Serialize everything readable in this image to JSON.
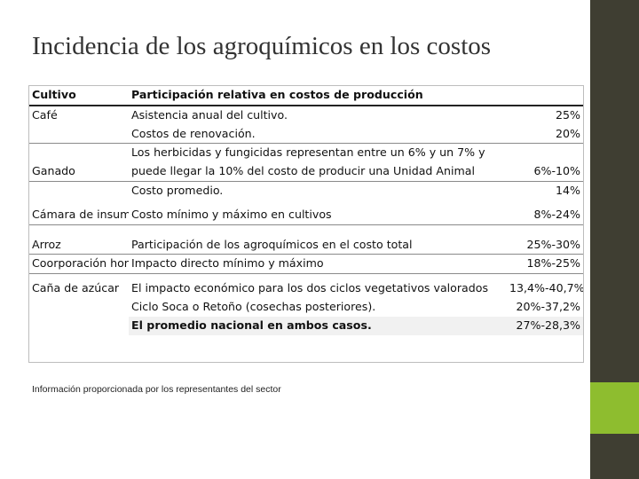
{
  "title": "Incidencia de los agroquímicos en los costos",
  "table": {
    "headers": [
      "Cultivo",
      "Participación relativa en costos de producción",
      ""
    ],
    "rows": [
      [
        "Café",
        "Asistencia anual del cultivo.",
        "25%"
      ],
      [
        "",
        "Costos de renovación.",
        "20%"
      ],
      [
        "",
        "Los herbicidas y fungicidas representan entre un 6% y un 7%  y",
        ""
      ],
      [
        "Ganado",
        "puede llegar la 10% del costo de producir una Unidad Animal",
        "6%-10%"
      ],
      [
        "",
        "Costo promedio.",
        "14%"
      ],
      [
        "Cámara de insumos",
        "Costo mínimo y máximo en cultivos",
        "8%-24%"
      ],
      [
        "Arroz",
        "Participación de los agroquímicos en el costo total",
        "25%-30%"
      ],
      [
        "Coorporación hortícola",
        "Impacto directo mínimo y máximo",
        "18%-25%"
      ],
      [
        "Caña de azúcar",
        "El impacto económico  para los dos ciclos vegetativos valorados",
        "13,4%-40,7%"
      ],
      [
        "",
        "Ciclo Soca o Retoño (cosechas posteriores).",
        "20%-37,2%"
      ],
      [
        "",
        "El promedio nacional en ambos casos.",
        "27%-28,3%"
      ]
    ]
  },
  "footnote": "Información proporcionada por los representantes del sector"
}
